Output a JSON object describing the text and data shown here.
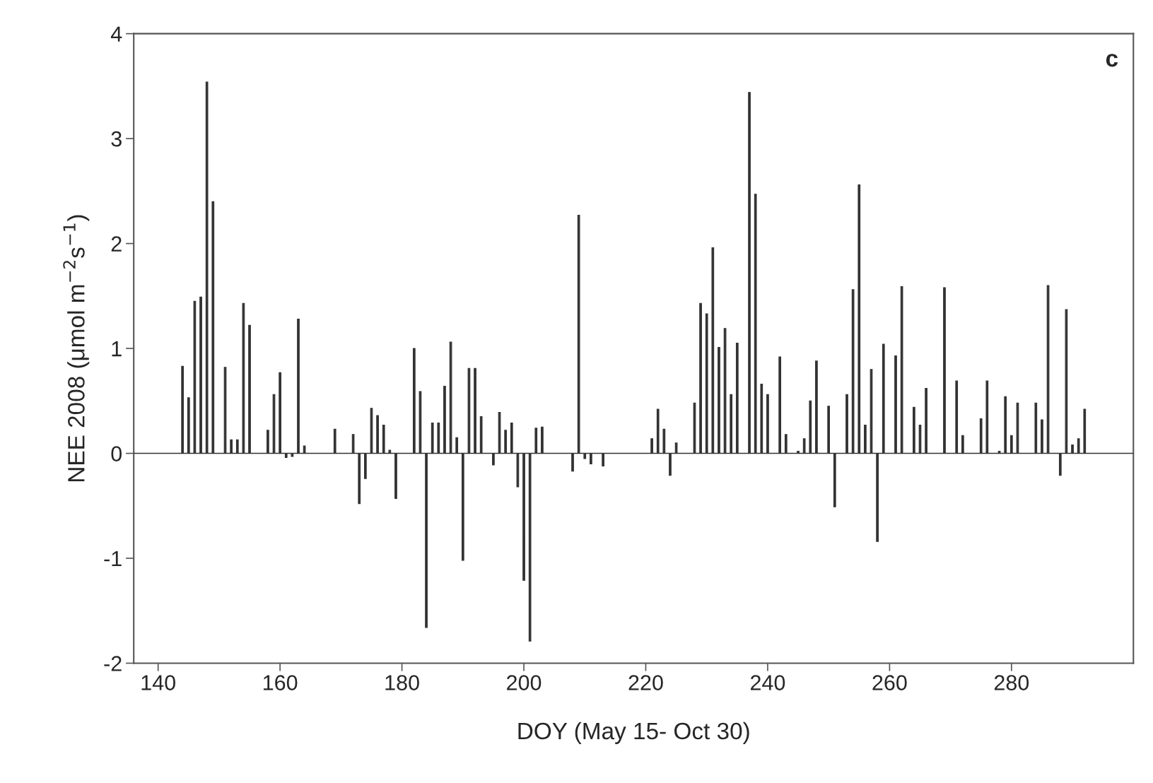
{
  "chart_data": {
    "type": "bar",
    "xlabel": "DOY (May 15- Oct 30)",
    "ylabel": "NEE 2008 (μmol m$^{−2}$s$^{−1}$)",
    "annotations": [
      "c"
    ],
    "x": [
      144,
      145,
      146,
      147,
      148,
      149,
      151,
      152,
      153,
      154,
      155,
      158,
      159,
      160,
      161,
      162,
      163,
      164,
      169,
      172,
      173,
      174,
      175,
      176,
      177,
      178,
      179,
      182,
      183,
      184,
      185,
      186,
      187,
      188,
      189,
      190,
      191,
      192,
      193,
      195,
      196,
      197,
      198,
      199,
      200,
      201,
      202,
      203,
      208,
      209,
      210,
      211,
      213,
      221,
      222,
      223,
      224,
      225,
      228,
      229,
      230,
      231,
      232,
      233,
      234,
      235,
      237,
      238,
      239,
      240,
      242,
      243,
      245,
      246,
      247,
      248,
      250,
      251,
      253,
      254,
      255,
      256,
      257,
      258,
      259,
      261,
      262,
      264,
      265,
      266,
      269,
      271,
      272,
      275,
      276,
      278,
      279,
      280,
      281,
      284,
      285,
      286,
      288,
      289,
      290,
      291,
      292
    ],
    "values": [
      0.83,
      0.53,
      1.45,
      1.49,
      3.54,
      2.4,
      0.82,
      0.13,
      0.13,
      1.43,
      1.22,
      0.22,
      0.56,
      0.77,
      -0.04,
      -0.03,
      1.28,
      0.07,
      0.23,
      0.18,
      -0.48,
      -0.24,
      0.43,
      0.36,
      0.27,
      0.03,
      -0.43,
      1.0,
      0.59,
      -1.66,
      0.29,
      0.29,
      0.64,
      1.06,
      0.15,
      -1.02,
      0.81,
      0.81,
      0.35,
      -0.11,
      0.39,
      0.22,
      0.29,
      -0.32,
      -1.21,
      -1.79,
      0.24,
      0.25,
      -0.17,
      2.27,
      -0.05,
      -0.1,
      -0.12,
      0.14,
      0.42,
      0.23,
      -0.21,
      0.1,
      0.48,
      1.43,
      1.33,
      1.96,
      1.01,
      1.19,
      0.56,
      1.05,
      3.44,
      2.47,
      0.66,
      0.56,
      0.92,
      0.18,
      0.02,
      0.14,
      0.5,
      0.88,
      0.45,
      -0.51,
      0.56,
      1.56,
      2.56,
      0.27,
      0.8,
      -0.84,
      1.04,
      0.93,
      1.59,
      0.44,
      0.27,
      0.62,
      1.58,
      0.69,
      0.17,
      0.33,
      0.69,
      0.02,
      0.54,
      0.17,
      0.48,
      0.48,
      0.32,
      1.6,
      -0.21,
      1.37,
      0.08,
      0.14,
      0.42
    ],
    "color": "#333333",
    "xlim": [
      136,
      300
    ],
    "xticks": [
      140,
      160,
      180,
      200,
      220,
      240,
      260,
      280
    ],
    "ylim": [
      -2,
      4
    ],
    "yticks": [
      -2,
      -1,
      0,
      1,
      2,
      3,
      4
    ],
    "ref_lines": [
      {
        "axis": "y",
        "value": 0,
        "color": "#333333"
      }
    ],
    "grid": false,
    "legend": false
  }
}
